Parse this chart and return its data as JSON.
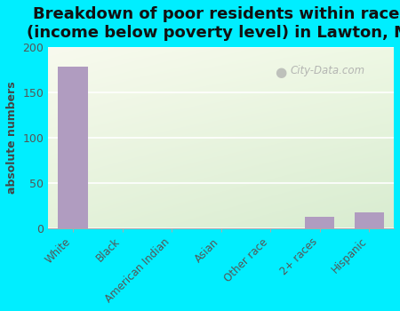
{
  "categories": [
    "White",
    "Black",
    "American Indian",
    "Asian",
    "Other race",
    "2+ races",
    "Hispanic"
  ],
  "values": [
    178,
    0,
    0,
    0,
    0,
    12,
    17
  ],
  "bar_color": "#b09cc0",
  "title": "Breakdown of poor residents within races\n(income below poverty level) in Lawton, MI",
  "ylabel": "absolute numbers",
  "ylim": [
    0,
    200
  ],
  "yticks": [
    0,
    50,
    100,
    150,
    200
  ],
  "bg_color_outer": "#00eeff",
  "title_fontsize": 13,
  "watermark": "City-Data.com",
  "grad_top_left": "#f8f8ee",
  "grad_bottom_right": "#d8ecd0"
}
